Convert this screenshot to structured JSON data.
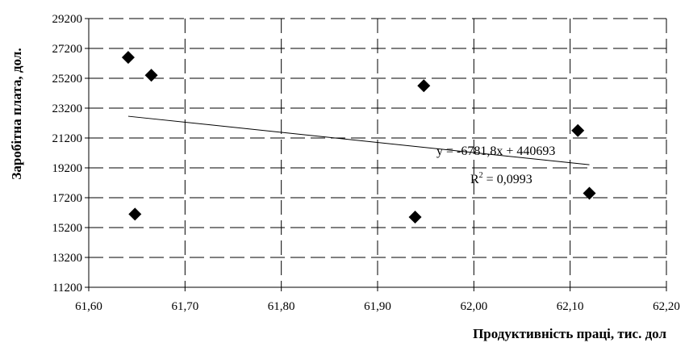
{
  "chart_data": {
    "type": "scatter",
    "title": "",
    "xlabel": "Продуктивність праці, тис. дол",
    "ylabel": "Заробітна плата, дол.",
    "xlim": [
      61.6,
      62.2
    ],
    "ylim": [
      11200,
      29200
    ],
    "x_ticks": [
      "61,60",
      "61,70",
      "61,80",
      "61,90",
      "62,00",
      "62,10",
      "62,20"
    ],
    "y_ticks": [
      "11200",
      "13200",
      "15200",
      "17200",
      "19200",
      "21200",
      "23200",
      "25200",
      "27200",
      "29200"
    ],
    "grid": "dashed",
    "marker": "diamond",
    "points": [
      {
        "x": 61.641,
        "y": 26600
      },
      {
        "x": 61.665,
        "y": 25400
      },
      {
        "x": 61.648,
        "y": 16100
      },
      {
        "x": 61.939,
        "y": 15900
      },
      {
        "x": 61.948,
        "y": 24700
      },
      {
        "x": 62.108,
        "y": 21700
      },
      {
        "x": 62.12,
        "y": 17500
      }
    ],
    "trendline": {
      "type": "linear",
      "slope": -6781.8,
      "intercept": 440693,
      "x_range": [
        61.641,
        62.12
      ],
      "equation_label": "y = -6781,8x + 440693",
      "r2_prefix": "R",
      "r2_exponent": "2",
      "r2_suffix": " = 0,0993"
    }
  }
}
